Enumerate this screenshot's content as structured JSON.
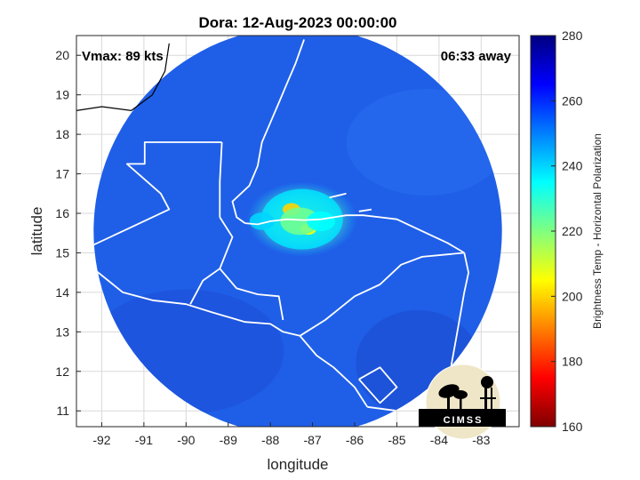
{
  "chart_data": {
    "type": "heatmap",
    "title": "Dora: 12-Aug-2023 00:00:00",
    "annotations": {
      "vmax": "Vmax: 89 kts",
      "time_away": "06:33 away"
    },
    "xlabel": "longitude",
    "ylabel": "latitude",
    "xlim": [
      -92.6,
      -82.1
    ],
    "ylim": [
      10.6,
      20.5
    ],
    "xticks": [
      -92,
      -91,
      -90,
      -89,
      -88,
      -87,
      -86,
      -85,
      -84,
      -83
    ],
    "yticks": [
      11,
      12,
      13,
      14,
      15,
      16,
      17,
      18,
      19,
      20
    ],
    "grid": true,
    "colorbar": {
      "label": "Brightness Temp - Horizontal Polarization",
      "min": 160,
      "max": 280,
      "ticks": [
        160,
        180,
        200,
        220,
        240,
        260,
        280
      ],
      "colormap": "jet"
    },
    "swath": {
      "center_lon": -87.35,
      "center_lat": 15.55,
      "radius_deg": 5.0
    },
    "field": {
      "background_value": 262,
      "features": [
        {
          "lon": -87.5,
          "lat": 16.1,
          "value": 200
        },
        {
          "lon": -87.1,
          "lat": 15.6,
          "value": 205
        },
        {
          "lon": -87.3,
          "lat": 15.8,
          "value": 222
        },
        {
          "lon": -86.8,
          "lat": 15.8,
          "value": 235
        },
        {
          "lon": -88.2,
          "lat": 15.8,
          "value": 240
        }
      ]
    },
    "logo_text": "CIMSS"
  },
  "colors": {
    "background": "#ffffff",
    "axes_background": "#ffffff",
    "grid": "#d9d9d9",
    "text": "#000000",
    "coastline": "#ffffff"
  }
}
